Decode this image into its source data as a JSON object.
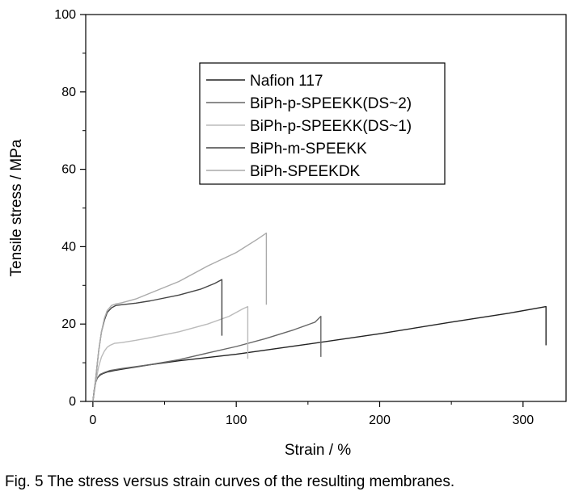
{
  "chart_data": {
    "type": "line",
    "xlabel": "Strain / %",
    "ylabel": "Tensile stress / MPa",
    "xlim": [
      -5,
      330
    ],
    "ylim": [
      0,
      100
    ],
    "xticks": [
      0,
      100,
      200,
      300
    ],
    "yticks": [
      0,
      20,
      40,
      60,
      80,
      100
    ],
    "legend_position": "upper-left",
    "grid": false,
    "series": [
      {
        "name": "Nafion 117",
        "color": "#222222",
        "x": [
          0,
          1,
          2,
          3,
          5,
          7,
          10,
          15,
          20,
          40,
          60,
          100,
          150,
          200,
          250,
          290,
          316,
          316
        ],
        "y": [
          0,
          3,
          5,
          6,
          6.8,
          7.2,
          7.6,
          8,
          8.3,
          9.5,
          10.5,
          12.2,
          14.8,
          17.5,
          20.5,
          22.8,
          24.5,
          14.5
        ]
      },
      {
        "name": "BiPh-p-SPEEKK(DS~2)",
        "color": "#666666",
        "x": [
          0,
          1,
          2,
          3,
          5,
          8,
          12,
          20,
          40,
          60,
          80,
          100,
          120,
          140,
          155,
          159,
          159
        ],
        "y": [
          0,
          3,
          5,
          6,
          7,
          7.5,
          8,
          8.5,
          9.5,
          10.8,
          12.5,
          14.2,
          16.2,
          18.5,
          20.5,
          22,
          11.5
        ]
      },
      {
        "name": "BiPh-p-SPEEKK(DS~1)",
        "color": "#bbbbbb",
        "x": [
          0,
          2,
          4,
          6,
          8,
          10,
          12,
          15,
          20,
          30,
          40,
          60,
          80,
          95,
          105,
          108,
          108
        ],
        "y": [
          0,
          5,
          9,
          11.5,
          13,
          14,
          14.5,
          15,
          15.2,
          15.8,
          16.5,
          18,
          20,
          22,
          24,
          24.5,
          11
        ]
      },
      {
        "name": "BiPh-m-SPEEKK",
        "color": "#444444",
        "x": [
          0,
          2,
          4,
          6,
          8,
          10,
          13,
          16,
          20,
          30,
          40,
          60,
          75,
          85,
          90,
          90
        ],
        "y": [
          0,
          6,
          13,
          18,
          21,
          23,
          24.2,
          24.8,
          25,
          25.4,
          26,
          27.5,
          29,
          30.5,
          31.5,
          17
        ]
      },
      {
        "name": "BiPh-SPEEKDK",
        "color": "#aaaaaa",
        "x": [
          0,
          2,
          4,
          6,
          8,
          10,
          13,
          16,
          20,
          30,
          40,
          60,
          80,
          100,
          115,
          121,
          121
        ],
        "y": [
          0,
          6,
          13,
          18,
          21.5,
          23.5,
          24.8,
          25.2,
          25.5,
          26.5,
          28,
          31,
          35,
          38.5,
          42,
          43.5,
          25
        ]
      }
    ]
  },
  "caption": "Fig. 5  The stress versus strain curves of the resulting membranes."
}
